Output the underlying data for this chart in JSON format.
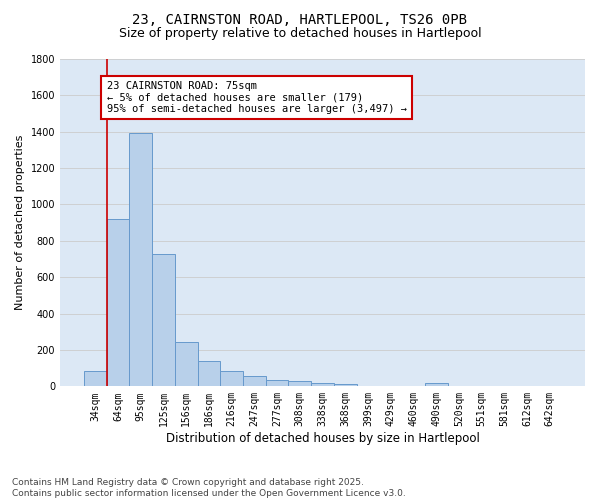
{
  "title_line1": "23, CAIRNSTON ROAD, HARTLEPOOL, TS26 0PB",
  "title_line2": "Size of property relative to detached houses in Hartlepool",
  "xlabel": "Distribution of detached houses by size in Hartlepool",
  "ylabel": "Number of detached properties",
  "categories": [
    "34sqm",
    "64sqm",
    "95sqm",
    "125sqm",
    "156sqm",
    "186sqm",
    "216sqm",
    "247sqm",
    "277sqm",
    "308sqm",
    "338sqm",
    "368sqm",
    "399sqm",
    "429sqm",
    "460sqm",
    "490sqm",
    "520sqm",
    "551sqm",
    "581sqm",
    "612sqm",
    "642sqm"
  ],
  "values": [
    85,
    920,
    1395,
    730,
    245,
    140,
    85,
    55,
    35,
    30,
    20,
    15,
    0,
    0,
    0,
    20,
    0,
    0,
    0,
    0,
    0
  ],
  "bar_color": "#b8d0ea",
  "bar_edge_color": "#6699cc",
  "ylim": [
    0,
    1800
  ],
  "yticks": [
    0,
    200,
    400,
    600,
    800,
    1000,
    1200,
    1400,
    1600,
    1800
  ],
  "grid_color": "#cccccc",
  "bg_color": "#dce8f5",
  "annotation_box_text": "23 CAIRNSTON ROAD: 75sqm\n← 5% of detached houses are smaller (179)\n95% of semi-detached houses are larger (3,497) →",
  "annotation_box_color": "#cc0000",
  "vertical_line_color": "#cc0000",
  "footer_line1": "Contains HM Land Registry data © Crown copyright and database right 2025.",
  "footer_line2": "Contains public sector information licensed under the Open Government Licence v3.0.",
  "title_fontsize": 10,
  "subtitle_fontsize": 9,
  "tick_fontsize": 7,
  "ylabel_fontsize": 8,
  "xlabel_fontsize": 8.5,
  "footer_fontsize": 6.5,
  "annotation_fontsize": 7.5
}
